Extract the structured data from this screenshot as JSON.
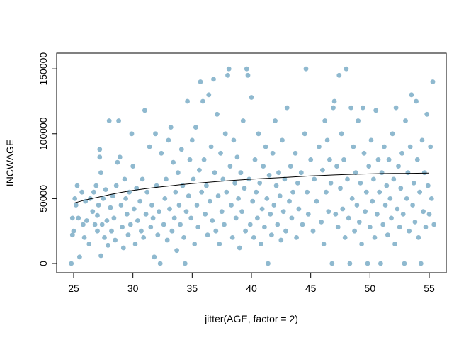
{
  "chart_data": {
    "type": "scatter",
    "title": "",
    "xlabel": "jitter(AGE, factor = 2)",
    "ylabel": "INCWAGE",
    "xlim": [
      24.0,
      56.0
    ],
    "ylim": [
      0,
      155000
    ],
    "x_ticks": [
      25,
      30,
      35,
      40,
      45,
      50,
      55
    ],
    "x_tick_labels": [
      "25",
      "30",
      "35",
      "40",
      "45",
      "50",
      "55"
    ],
    "y_ticks": [
      0,
      50000,
      100000,
      150000
    ],
    "y_tick_labels": [
      "0",
      "50000",
      "100000",
      "150000"
    ],
    "grid": false,
    "point_color": "#8fb9cf",
    "line_color": "#000000",
    "points": [
      [
        24.8,
        0
      ],
      [
        24.9,
        22000
      ],
      [
        24.9,
        35000
      ],
      [
        25.0,
        25000
      ],
      [
        25.1,
        50000
      ],
      [
        25.2,
        45000
      ],
      [
        25.3,
        60000
      ],
      [
        25.4,
        35000
      ],
      [
        25.5,
        5000
      ],
      [
        25.7,
        55000
      ],
      [
        25.8,
        30000
      ],
      [
        25.9,
        20000
      ],
      [
        26.0,
        48000
      ],
      [
        26.1,
        33000
      ],
      [
        26.3,
        15000
      ],
      [
        26.4,
        50000
      ],
      [
        26.6,
        40000
      ],
      [
        26.7,
        55000
      ],
      [
        26.8,
        30000
      ],
      [
        26.9,
        60000
      ],
      [
        27.0,
        25000
      ],
      [
        27.0,
        37000
      ],
      [
        27.1,
        45000
      ],
      [
        27.2,
        82000
      ],
      [
        27.2,
        88000
      ],
      [
        27.3,
        70000
      ],
      [
        27.3,
        6000
      ],
      [
        27.4,
        30000
      ],
      [
        27.5,
        50000
      ],
      [
        27.6,
        20000
      ],
      [
        27.7,
        57000
      ],
      [
        27.8,
        33000
      ],
      [
        27.9,
        14000
      ],
      [
        28.0,
        110000
      ],
      [
        28.1,
        43000
      ],
      [
        28.2,
        25000
      ],
      [
        28.3,
        52000
      ],
      [
        28.4,
        35000
      ],
      [
        28.5,
        18000
      ],
      [
        28.6,
        60000
      ],
      [
        28.7,
        78000
      ],
      [
        28.8,
        110000
      ],
      [
        28.9,
        82000
      ],
      [
        29.0,
        45000
      ],
      [
        29.1,
        28000
      ],
      [
        29.2,
        12000
      ],
      [
        29.3,
        65000
      ],
      [
        29.4,
        50000
      ],
      [
        29.5,
        38000
      ],
      [
        29.6,
        22000
      ],
      [
        29.7,
        55000
      ],
      [
        29.8,
        30000
      ],
      [
        29.9,
        100000
      ],
      [
        30.0,
        75000
      ],
      [
        30.1,
        42000
      ],
      [
        30.2,
        15000
      ],
      [
        30.3,
        58000
      ],
      [
        30.4,
        33000
      ],
      [
        30.6,
        48000
      ],
      [
        30.7,
        25000
      ],
      [
        30.8,
        65000
      ],
      [
        30.9,
        20000
      ],
      [
        31.0,
        118000
      ],
      [
        31.1,
        38000
      ],
      [
        31.2,
        55000
      ],
      [
        31.4,
        90000
      ],
      [
        31.5,
        28000
      ],
      [
        31.6,
        45000
      ],
      [
        31.7,
        35000
      ],
      [
        31.8,
        5000
      ],
      [
        31.9,
        100000
      ],
      [
        32.0,
        60000
      ],
      [
        32.1,
        22000
      ],
      [
        32.2,
        40000
      ],
      [
        32.3,
        0
      ],
      [
        32.4,
        85000
      ],
      [
        32.6,
        30000
      ],
      [
        32.7,
        50000
      ],
      [
        32.8,
        65000
      ],
      [
        32.9,
        18000
      ],
      [
        33.0,
        95000
      ],
      [
        33.1,
        42000
      ],
      [
        33.2,
        105000
      ],
      [
        33.3,
        25000
      ],
      [
        33.4,
        78000
      ],
      [
        33.5,
        35000
      ],
      [
        33.6,
        55000
      ],
      [
        33.7,
        10000
      ],
      [
        33.8,
        70000
      ],
      [
        33.9,
        45000
      ],
      [
        34.0,
        30000
      ],
      [
        34.1,
        88000
      ],
      [
        34.2,
        60000
      ],
      [
        34.3,
        20000
      ],
      [
        34.4,
        0
      ],
      [
        34.5,
        40000
      ],
      [
        34.6,
        125000
      ],
      [
        34.7,
        52000
      ],
      [
        34.8,
        80000
      ],
      [
        34.9,
        35000
      ],
      [
        35.0,
        95000
      ],
      [
        35.1,
        65000
      ],
      [
        35.2,
        15000
      ],
      [
        35.3,
        105000
      ],
      [
        35.4,
        45000
      ],
      [
        35.5,
        28000
      ],
      [
        35.6,
        72000
      ],
      [
        35.7,
        140000
      ],
      [
        35.8,
        55000
      ],
      [
        35.9,
        125000
      ],
      [
        36.0,
        80000
      ],
      [
        36.1,
        38000
      ],
      [
        36.2,
        60000
      ],
      [
        36.3,
        22000
      ],
      [
        36.4,
        130000
      ],
      [
        36.5,
        48000
      ],
      [
        36.6,
        90000
      ],
      [
        36.7,
        33000
      ],
      [
        36.8,
        142000
      ],
      [
        36.9,
        70000
      ],
      [
        37.0,
        25000
      ],
      [
        37.1,
        115000
      ],
      [
        37.2,
        52000
      ],
      [
        37.3,
        15000
      ],
      [
        37.4,
        85000
      ],
      [
        37.5,
        40000
      ],
      [
        37.6,
        65000
      ],
      [
        37.7,
        30000
      ],
      [
        37.8,
        100000
      ],
      [
        37.9,
        55000
      ],
      [
        38.0,
        145000
      ],
      [
        38.1,
        150000
      ],
      [
        38.2,
        75000
      ],
      [
        38.3,
        45000
      ],
      [
        38.4,
        20000
      ],
      [
        38.5,
        95000
      ],
      [
        38.6,
        62000
      ],
      [
        38.7,
        35000
      ],
      [
        38.8,
        82000
      ],
      [
        38.9,
        50000
      ],
      [
        39.0,
        12000
      ],
      [
        39.1,
        70000
      ],
      [
        39.2,
        40000
      ],
      [
        39.3,
        110000
      ],
      [
        39.4,
        58000
      ],
      [
        39.5,
        25000
      ],
      [
        39.6,
        150000
      ],
      [
        39.7,
        145000
      ],
      [
        39.8,
        65000
      ],
      [
        39.9,
        30000
      ],
      [
        40.0,
        128000
      ],
      [
        40.1,
        48000
      ],
      [
        40.2,
        20000
      ],
      [
        40.3,
        80000
      ],
      [
        40.4,
        55000
      ],
      [
        40.5,
        35000
      ],
      [
        40.6,
        100000
      ],
      [
        40.7,
        62000
      ],
      [
        40.8,
        15000
      ],
      [
        40.9,
        42000
      ],
      [
        41.0,
        75000
      ],
      [
        41.1,
        28000
      ],
      [
        41.2,
        90000
      ],
      [
        41.3,
        50000
      ],
      [
        41.4,
        0
      ],
      [
        41.5,
        68000
      ],
      [
        41.6,
        38000
      ],
      [
        41.7,
        22000
      ],
      [
        41.8,
        85000
      ],
      [
        41.9,
        45000
      ],
      [
        42.0,
        110000
      ],
      [
        42.1,
        60000
      ],
      [
        42.2,
        30000
      ],
      [
        42.3,
        70000
      ],
      [
        42.4,
        52000
      ],
      [
        42.5,
        18000
      ],
      [
        42.6,
        95000
      ],
      [
        42.7,
        40000
      ],
      [
        42.8,
        65000
      ],
      [
        42.9,
        25000
      ],
      [
        43.0,
        120000
      ],
      [
        43.2,
        48000
      ],
      [
        43.3,
        75000
      ],
      [
        43.4,
        35000
      ],
      [
        43.5,
        55000
      ],
      [
        43.7,
        85000
      ],
      [
        43.8,
        20000
      ],
      [
        43.9,
        62000
      ],
      [
        44.0,
        42000
      ],
      [
        44.2,
        70000
      ],
      [
        44.3,
        30000
      ],
      [
        44.5,
        100000
      ],
      [
        44.6,
        150000
      ],
      [
        44.7,
        55000
      ],
      [
        44.8,
        38000
      ],
      [
        45.0,
        80000
      ],
      [
        45.2,
        25000
      ],
      [
        45.3,
        65000
      ],
      [
        45.5,
        48000
      ],
      [
        45.7,
        90000
      ],
      [
        45.9,
        32000
      ],
      [
        46.0,
        72000
      ],
      [
        46.1,
        15000
      ],
      [
        46.2,
        110000
      ],
      [
        46.3,
        55000
      ],
      [
        46.4,
        95000
      ],
      [
        46.5,
        40000
      ],
      [
        46.6,
        80000
      ],
      [
        46.7,
        62000
      ],
      [
        46.8,
        0
      ],
      [
        46.9,
        120000
      ],
      [
        47.0,
        125000
      ],
      [
        47.1,
        38000
      ],
      [
        47.2,
        75000
      ],
      [
        47.3,
        28000
      ],
      [
        47.4,
        145000
      ],
      [
        47.5,
        58000
      ],
      [
        47.6,
        100000
      ],
      [
        47.7,
        42000
      ],
      [
        47.8,
        80000
      ],
      [
        47.9,
        20000
      ],
      [
        48.0,
        150000
      ],
      [
        48.1,
        65000
      ],
      [
        48.2,
        35000
      ],
      [
        48.3,
        0
      ],
      [
        48.4,
        120000
      ],
      [
        48.5,
        50000
      ],
      [
        48.6,
        90000
      ],
      [
        48.7,
        25000
      ],
      [
        48.8,
        70000
      ],
      [
        48.9,
        45000
      ],
      [
        49.0,
        110000
      ],
      [
        49.1,
        32000
      ],
      [
        49.2,
        62000
      ],
      [
        49.3,
        15000
      ],
      [
        49.4,
        120000
      ],
      [
        49.5,
        85000
      ],
      [
        49.6,
        40000
      ],
      [
        49.7,
        55000
      ],
      [
        49.8,
        0
      ],
      [
        49.9,
        75000
      ],
      [
        50.0,
        28000
      ],
      [
        50.1,
        95000
      ],
      [
        50.2,
        48000
      ],
      [
        50.3,
        65000
      ],
      [
        50.4,
        20000
      ],
      [
        50.5,
        118000
      ],
      [
        50.6,
        38000
      ],
      [
        50.7,
        80000
      ],
      [
        50.8,
        55000
      ],
      [
        50.9,
        0
      ],
      [
        51.0,
        70000
      ],
      [
        51.1,
        30000
      ],
      [
        51.2,
        90000
      ],
      [
        51.3,
        45000
      ],
      [
        51.4,
        60000
      ],
      [
        51.5,
        22000
      ],
      [
        51.6,
        80000
      ],
      [
        51.7,
        50000
      ],
      [
        51.8,
        35000
      ],
      [
        51.9,
        100000
      ],
      [
        52.0,
        65000
      ],
      [
        52.1,
        15000
      ],
      [
        52.2,
        120000
      ],
      [
        52.3,
        42000
      ],
      [
        52.4,
        75000
      ],
      [
        52.5,
        28000
      ],
      [
        52.6,
        58000
      ],
      [
        52.7,
        85000
      ],
      [
        52.8,
        38000
      ],
      [
        52.9,
        0
      ],
      [
        53.0,
        110000
      ],
      [
        53.1,
        50000
      ],
      [
        53.2,
        70000
      ],
      [
        53.3,
        25000
      ],
      [
        53.4,
        90000
      ],
      [
        53.5,
        130000
      ],
      [
        53.6,
        45000
      ],
      [
        53.7,
        62000
      ],
      [
        53.8,
        32000
      ],
      [
        53.9,
        125000
      ],
      [
        54.0,
        80000
      ],
      [
        54.1,
        20000
      ],
      [
        54.2,
        55000
      ],
      [
        54.3,
        0
      ],
      [
        54.4,
        95000
      ],
      [
        54.5,
        40000
      ],
      [
        54.6,
        70000
      ],
      [
        54.7,
        28000
      ],
      [
        54.8,
        115000
      ],
      [
        54.9,
        60000
      ],
      [
        55.0,
        38000
      ],
      [
        55.1,
        90000
      ],
      [
        55.2,
        50000
      ],
      [
        55.3,
        140000
      ],
      [
        55.4,
        30000
      ]
    ],
    "trend_line": [
      [
        25,
        46500
      ],
      [
        26,
        49000
      ],
      [
        27,
        51000
      ],
      [
        28,
        53000
      ],
      [
        29,
        54800
      ],
      [
        30,
        56300
      ],
      [
        31,
        57600
      ],
      [
        32,
        58700
      ],
      [
        33,
        59700
      ],
      [
        34,
        60700
      ],
      [
        35,
        61600
      ],
      [
        36,
        62400
      ],
      [
        37,
        63100
      ],
      [
        38,
        63800
      ],
      [
        39,
        64400
      ],
      [
        40,
        65000
      ],
      [
        41,
        65500
      ],
      [
        42,
        66000
      ],
      [
        43,
        66500
      ],
      [
        44,
        67000
      ],
      [
        45,
        67500
      ],
      [
        46,
        67900
      ],
      [
        47,
        68300
      ],
      [
        48,
        68600
      ],
      [
        49,
        68900
      ],
      [
        50,
        69100
      ],
      [
        51,
        69300
      ],
      [
        52,
        69400
      ],
      [
        53,
        69500
      ],
      [
        54,
        69600
      ],
      [
        55,
        69700
      ]
    ]
  }
}
